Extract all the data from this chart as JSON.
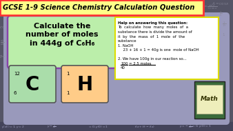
{
  "title": "GCSE 1-9 Science Chemistry Calculation Question",
  "title_bg": "#FFFF88",
  "title_border": "#FF3333",
  "main_bg": "#9999BB",
  "question_text_line1": "Calculate the",
  "question_text_line2": "number of moles",
  "question_text_line3": "in 444g of C₆H₆",
  "question_bg": "#BBEEAA",
  "question_border": "#8844AA",
  "element_C_bg": "#AADDAA",
  "element_H_bg": "#FFCC88",
  "help_text_bold": "Help on answering this question:",
  "help_line1": "To  calculate  how  many  moles  of  a",
  "help_line2": "substance there is divide the amount of",
  "help_line3": "it  by  the  mass  of  1  mole  of  the",
  "help_line4": "substance",
  "help_line5": "1. NaOH",
  "help_line6": "  23 + 16 + 1 = 40g is one  mole of NaOH",
  "help_line7": "2. We have 100g in our reaction so...",
  "help_numerator": "100",
  "help_equals": "= 2.5 moles",
  "help_denominator": "40",
  "help_bg": "#FFFFFF",
  "help_border": "#DDDD00",
  "math_book_green": "#3A6B3A",
  "math_book_page": "#EEEEBB",
  "math_label": "Math",
  "bg_dark": "#555566",
  "chalkboard_eq_color": "#888899"
}
